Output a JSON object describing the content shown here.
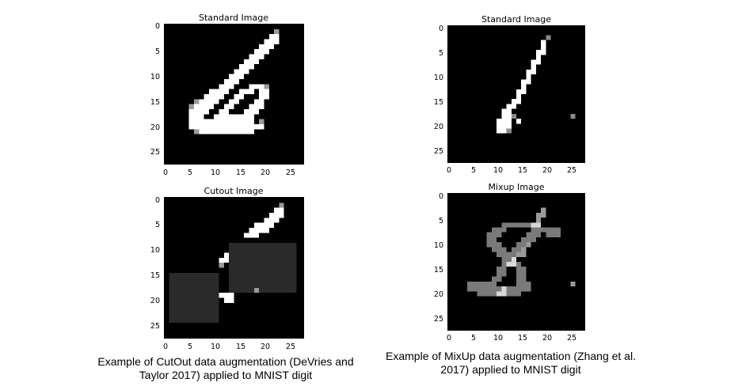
{
  "left": {
    "top_title": "Standard Image",
    "bottom_title": "Cutout Image",
    "caption_line1": "Example of CutOut data augmentation (DeVries and",
    "caption_line2": "Taylor 2017) applied to MNIST digit"
  },
  "right": {
    "top_title": "Standard Image",
    "bottom_title": "Mixup Image",
    "caption_line1": "Example of MixUp data augmentation (Zhang et al.",
    "caption_line2": "2017) applied to MNIST digit"
  },
  "axes": {
    "y_ticks": [
      "0",
      "5",
      "10",
      "15",
      "20",
      "25"
    ],
    "x_ticks": [
      "0",
      "5",
      "10",
      "15",
      "20",
      "25"
    ]
  },
  "colors": {
    "background": "#000000",
    "cutout_patch": "#2a2a2a",
    "stroke": "#ffffff"
  }
}
